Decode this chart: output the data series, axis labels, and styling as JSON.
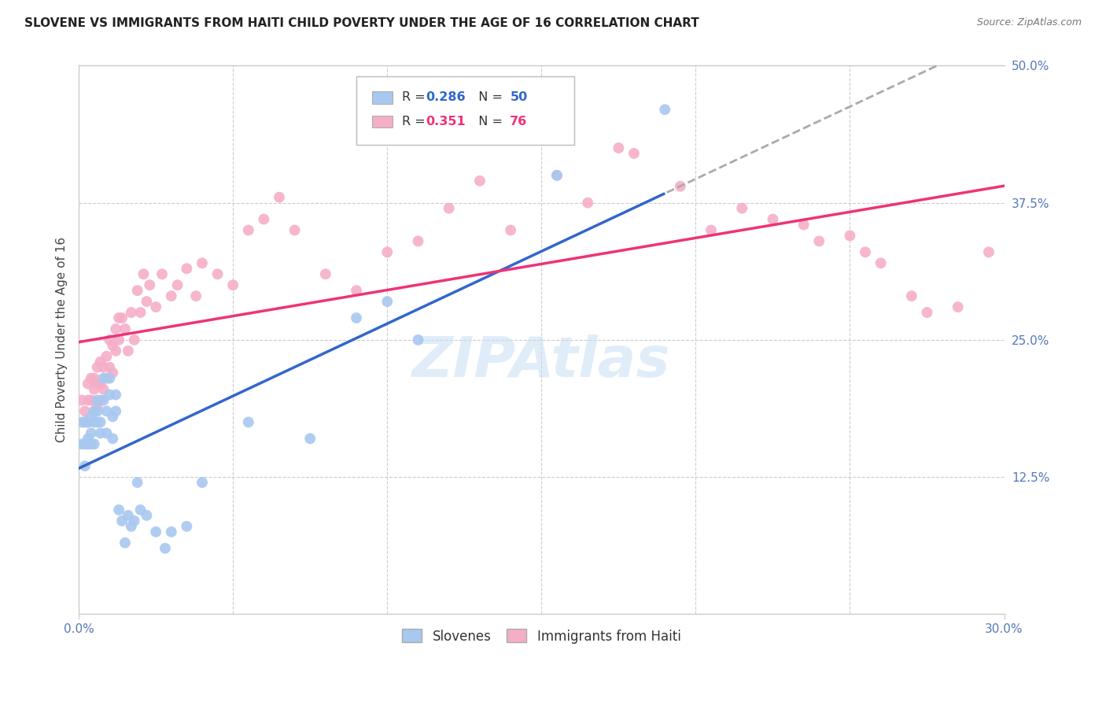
{
  "title": "SLOVENE VS IMMIGRANTS FROM HAITI CHILD POVERTY UNDER THE AGE OF 16 CORRELATION CHART",
  "source": "Source: ZipAtlas.com",
  "ylabel": "Child Poverty Under the Age of 16",
  "xlim": [
    0.0,
    0.3
  ],
  "ylim": [
    0.0,
    0.5
  ],
  "ytick_right_labels": [
    "12.5%",
    "25.0%",
    "37.5%",
    "50.0%"
  ],
  "ytick_right_vals": [
    0.125,
    0.25,
    0.375,
    0.5
  ],
  "legend_r1": "0.286",
  "legend_n1": "50",
  "legend_r2": "0.351",
  "legend_n2": "76",
  "watermark": "ZIPAtlas",
  "color_slovene": "#a8c8f0",
  "color_haiti": "#f5aec8",
  "color_line_slovene": "#3366cc",
  "color_line_haiti": "#ee3377",
  "color_line_dashed": "#aaaaaa",
  "slovene_x": [
    0.001,
    0.001,
    0.002,
    0.002,
    0.002,
    0.003,
    0.003,
    0.003,
    0.004,
    0.004,
    0.004,
    0.005,
    0.005,
    0.005,
    0.006,
    0.006,
    0.006,
    0.007,
    0.007,
    0.008,
    0.008,
    0.009,
    0.009,
    0.01,
    0.01,
    0.011,
    0.011,
    0.012,
    0.012,
    0.013,
    0.014,
    0.015,
    0.016,
    0.017,
    0.018,
    0.019,
    0.02,
    0.022,
    0.025,
    0.028,
    0.03,
    0.035,
    0.04,
    0.055,
    0.075,
    0.09,
    0.1,
    0.11,
    0.155,
    0.19
  ],
  "slovene_y": [
    0.175,
    0.155,
    0.175,
    0.155,
    0.135,
    0.175,
    0.16,
    0.155,
    0.18,
    0.155,
    0.165,
    0.185,
    0.175,
    0.155,
    0.195,
    0.185,
    0.175,
    0.165,
    0.175,
    0.215,
    0.195,
    0.185,
    0.165,
    0.215,
    0.2,
    0.18,
    0.16,
    0.185,
    0.2,
    0.095,
    0.085,
    0.065,
    0.09,
    0.08,
    0.085,
    0.12,
    0.095,
    0.09,
    0.075,
    0.06,
    0.075,
    0.08,
    0.12,
    0.175,
    0.16,
    0.27,
    0.285,
    0.25,
    0.4,
    0.46
  ],
  "haiti_x": [
    0.001,
    0.002,
    0.002,
    0.003,
    0.003,
    0.003,
    0.004,
    0.004,
    0.005,
    0.005,
    0.005,
    0.006,
    0.006,
    0.006,
    0.007,
    0.007,
    0.007,
    0.008,
    0.008,
    0.009,
    0.009,
    0.01,
    0.01,
    0.011,
    0.011,
    0.012,
    0.012,
    0.013,
    0.013,
    0.014,
    0.015,
    0.016,
    0.017,
    0.018,
    0.019,
    0.02,
    0.021,
    0.022,
    0.023,
    0.025,
    0.027,
    0.03,
    0.032,
    0.035,
    0.038,
    0.04,
    0.045,
    0.05,
    0.055,
    0.06,
    0.065,
    0.07,
    0.08,
    0.09,
    0.1,
    0.11,
    0.12,
    0.13,
    0.14,
    0.155,
    0.165,
    0.175,
    0.18,
    0.195,
    0.205,
    0.215,
    0.225,
    0.235,
    0.24,
    0.25,
    0.255,
    0.26,
    0.27,
    0.275,
    0.285,
    0.295
  ],
  "haiti_y": [
    0.195,
    0.185,
    0.175,
    0.21,
    0.195,
    0.175,
    0.215,
    0.195,
    0.215,
    0.205,
    0.185,
    0.225,
    0.21,
    0.19,
    0.23,
    0.21,
    0.195,
    0.225,
    0.205,
    0.235,
    0.215,
    0.25,
    0.225,
    0.245,
    0.22,
    0.26,
    0.24,
    0.27,
    0.25,
    0.27,
    0.26,
    0.24,
    0.275,
    0.25,
    0.295,
    0.275,
    0.31,
    0.285,
    0.3,
    0.28,
    0.31,
    0.29,
    0.3,
    0.315,
    0.29,
    0.32,
    0.31,
    0.3,
    0.35,
    0.36,
    0.38,
    0.35,
    0.31,
    0.295,
    0.33,
    0.34,
    0.37,
    0.395,
    0.35,
    0.4,
    0.375,
    0.425,
    0.42,
    0.39,
    0.35,
    0.37,
    0.36,
    0.355,
    0.34,
    0.345,
    0.33,
    0.32,
    0.29,
    0.275,
    0.28,
    0.33
  ]
}
